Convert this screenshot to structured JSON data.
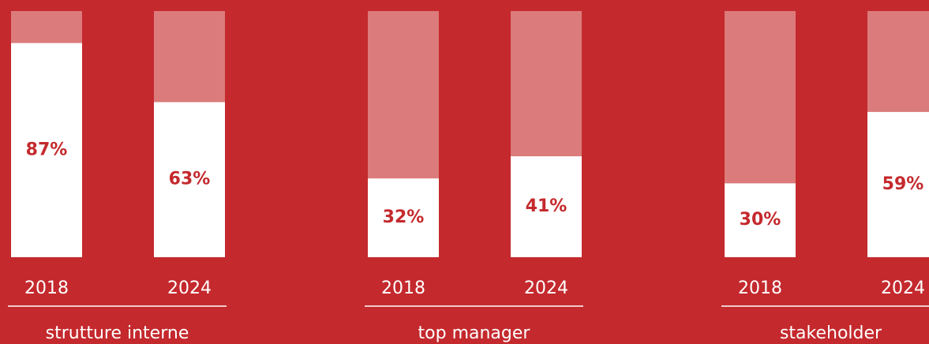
{
  "chart_data": {
    "type": "bar",
    "categories": [
      "strutture interne",
      "top manager",
      "stakeholder"
    ],
    "series": [
      {
        "name": "2018",
        "color": "#ffffff",
        "values": [
          87,
          32,
          30
        ],
        "value_labels": [
          "87%",
          "32%",
          "30%"
        ]
      },
      {
        "name": "2024",
        "color": "#ffffff",
        "values": [
          63,
          41,
          59
        ],
        "value_labels": [
          "63%",
          "41%",
          "59%"
        ]
      }
    ],
    "track_color": "#dc7b7b",
    "ylim": [
      0,
      100
    ]
  }
}
